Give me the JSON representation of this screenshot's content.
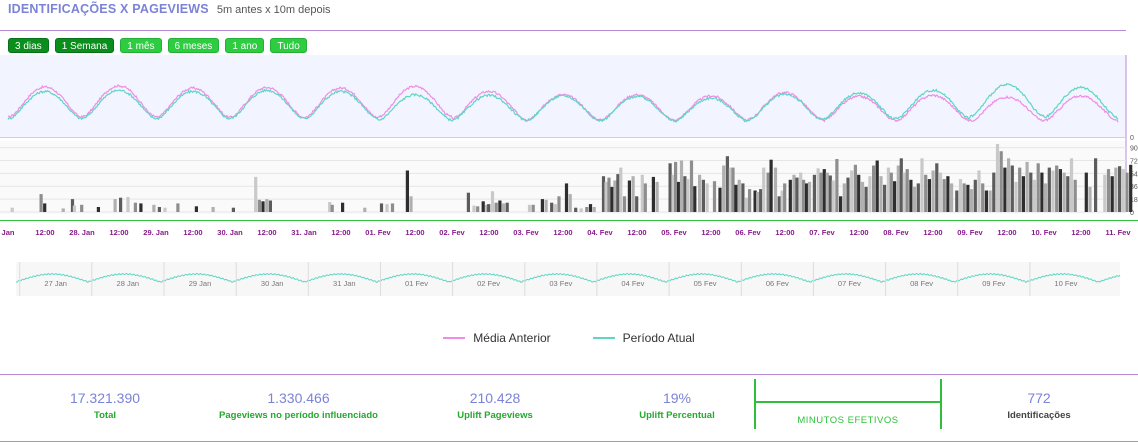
{
  "header": {
    "title": "IDENTIFICAÇÕES X PAGEVIEWS",
    "subtitle": "5m antes x 10m depois"
  },
  "range_buttons": [
    {
      "label": "3 dias",
      "active": true
    },
    {
      "label": "1 Semana",
      "active": true
    },
    {
      "label": "1 mês",
      "active": false
    },
    {
      "label": "6 meses",
      "active": false
    },
    {
      "label": "1 ano",
      "active": false
    },
    {
      "label": "Tudo",
      "active": false
    }
  ],
  "colors": {
    "previous": "#f08ce8",
    "current": "#5fd6c4",
    "accent": "#7b83d6",
    "green": "#24a82e"
  },
  "chart_data": {
    "type": "line",
    "series": [
      {
        "name": "Média Anterior",
        "color": "#f08ce8",
        "day_peaks": [
          0.86,
          0.88,
          0.84,
          0.85,
          0.84,
          0.87,
          0.78,
          0.72,
          0.72,
          0.7,
          0.76,
          0.69,
          0.71,
          0.68,
          0.7,
          0.66
        ]
      },
      {
        "name": "Período Atual",
        "color": "#5fd6c4",
        "day_peaks": [
          0.78,
          0.8,
          0.78,
          0.8,
          0.78,
          0.72,
          0.71,
          0.7,
          0.69,
          0.66,
          0.73,
          0.75,
          0.8,
          0.9,
          0.85,
          0.8
        ]
      }
    ],
    "bar_axis": {
      "ticks": [
        0,
        18,
        36,
        54,
        72,
        90
      ],
      "ylim": [
        0,
        95
      ]
    },
    "line_axis": {
      "ticks": [
        0
      ]
    },
    "x_tick_labels": [
      "Jan",
      "12:00",
      "28. Jan",
      "12:00",
      "29. Jan",
      "12:00",
      "30. Jan",
      "12:00",
      "31. Jan",
      "12:00",
      "01. Fev",
      "12:00",
      "02. Fev",
      "12:00",
      "03. Fev",
      "12:00",
      "04. Fev",
      "12:00",
      "05. Fev",
      "12:00",
      "06. Fev",
      "12:00",
      "07. Fev",
      "12:00",
      "08. Fev",
      "12:00",
      "09. Fev",
      "12:00",
      "10. Fev",
      "12:00",
      "11. Fev"
    ],
    "navigator_labels": [
      "27 Jan",
      "28 Jan",
      "29 Jan",
      "30 Jan",
      "31 Jan",
      "01 Fev",
      "02 Fev",
      "03 Fev",
      "04 Fev",
      "05 Fev",
      "06 Fev",
      "07 Fev",
      "08 Fev",
      "09 Fev",
      "10 Fev"
    ],
    "bars": [
      {
        "x": 0.07,
        "v": 6
      },
      {
        "x": 0.85,
        "v": 25
      },
      {
        "x": 0.95,
        "v": 12
      },
      {
        "x": 1.45,
        "v": 5
      },
      {
        "x": 1.7,
        "v": 18
      },
      {
        "x": 1.75,
        "v": 9
      },
      {
        "x": 1.95,
        "v": 10
      },
      {
        "x": 2.4,
        "v": 7
      },
      {
        "x": 2.85,
        "v": 18
      },
      {
        "x": 3.0,
        "v": 20
      },
      {
        "x": 3.2,
        "v": 21
      },
      {
        "x": 3.4,
        "v": 13
      },
      {
        "x": 3.55,
        "v": 12
      },
      {
        "x": 3.9,
        "v": 10
      },
      {
        "x": 4.05,
        "v": 7
      },
      {
        "x": 4.2,
        "v": 6
      },
      {
        "x": 4.55,
        "v": 12
      },
      {
        "x": 5.05,
        "v": 8
      },
      {
        "x": 5.5,
        "v": 7
      },
      {
        "x": 6.05,
        "v": 6
      },
      {
        "x": 6.65,
        "v": 49
      },
      {
        "x": 6.75,
        "v": 17
      },
      {
        "x": 6.85,
        "v": 15
      },
      {
        "x": 6.95,
        "v": 18
      },
      {
        "x": 7.05,
        "v": 16
      },
      {
        "x": 8.65,
        "v": 14
      },
      {
        "x": 8.72,
        "v": 10
      },
      {
        "x": 9.0,
        "v": 13
      },
      {
        "x": 9.6,
        "v": 6
      },
      {
        "x": 10.05,
        "v": 12
      },
      {
        "x": 10.2,
        "v": 11
      },
      {
        "x": 10.35,
        "v": 12
      },
      {
        "x": 10.75,
        "v": 58
      },
      {
        "x": 10.85,
        "v": 22
      },
      {
        "x": 12.4,
        "v": 27
      },
      {
        "x": 12.55,
        "v": 9
      },
      {
        "x": 12.65,
        "v": 8
      },
      {
        "x": 12.8,
        "v": 15
      },
      {
        "x": 12.9,
        "v": 10
      },
      {
        "x": 12.95,
        "v": 11
      },
      {
        "x": 13.05,
        "v": 29
      },
      {
        "x": 13.15,
        "v": 13
      },
      {
        "x": 13.25,
        "v": 16
      },
      {
        "x": 13.35,
        "v": 12
      },
      {
        "x": 13.45,
        "v": 13
      },
      {
        "x": 14.05,
        "v": 10
      },
      {
        "x": 14.15,
        "v": 10
      },
      {
        "x": 14.4,
        "v": 18
      },
      {
        "x": 14.5,
        "v": 17
      },
      {
        "x": 14.65,
        "v": 13
      },
      {
        "x": 14.75,
        "v": 11
      },
      {
        "x": 14.85,
        "v": 22
      },
      {
        "x": 15.05,
        "v": 40
      },
      {
        "x": 15.15,
        "v": 25
      },
      {
        "x": 15.3,
        "v": 6
      },
      {
        "x": 15.45,
        "v": 5
      },
      {
        "x": 15.6,
        "v": 7
      },
      {
        "x": 15.7,
        "v": 11
      },
      {
        "x": 15.8,
        "v": 7
      },
      {
        "x": 16.05,
        "v": 50
      },
      {
        "x": 16.12,
        "v": 42
      },
      {
        "x": 16.2,
        "v": 48
      },
      {
        "x": 16.28,
        "v": 35
      },
      {
        "x": 16.36,
        "v": 44
      },
      {
        "x": 16.44,
        "v": 53
      },
      {
        "x": 16.52,
        "v": 62
      },
      {
        "x": 16.62,
        "v": 22
      },
      {
        "x": 16.75,
        "v": 44
      },
      {
        "x": 16.85,
        "v": 50
      },
      {
        "x": 16.95,
        "v": 22
      },
      {
        "x": 17.1,
        "v": 52
      },
      {
        "x": 17.18,
        "v": 40
      },
      {
        "x": 17.4,
        "v": 49
      },
      {
        "x": 17.5,
        "v": 42
      },
      {
        "x": 17.85,
        "v": 68
      },
      {
        "x": 17.93,
        "v": 52
      },
      {
        "x": 18.0,
        "v": 70
      },
      {
        "x": 18.08,
        "v": 42
      },
      {
        "x": 18.16,
        "v": 72
      },
      {
        "x": 18.25,
        "v": 50
      },
      {
        "x": 18.33,
        "v": 46
      },
      {
        "x": 18.43,
        "v": 72
      },
      {
        "x": 18.52,
        "v": 36
      },
      {
        "x": 18.65,
        "v": 52
      },
      {
        "x": 18.75,
        "v": 45
      },
      {
        "x": 18.85,
        "v": 40
      },
      {
        "x": 19.05,
        "v": 43
      },
      {
        "x": 19.2,
        "v": 34
      },
      {
        "x": 19.3,
        "v": 65
      },
      {
        "x": 19.4,
        "v": 78
      },
      {
        "x": 19.48,
        "v": 62
      },
      {
        "x": 19.55,
        "v": 62
      },
      {
        "x": 19.63,
        "v": 38
      },
      {
        "x": 19.72,
        "v": 45
      },
      {
        "x": 19.82,
        "v": 40
      },
      {
        "x": 19.92,
        "v": 20
      },
      {
        "x": 20.0,
        "v": 32
      },
      {
        "x": 20.15,
        "v": 30
      },
      {
        "x": 20.22,
        "v": 28
      },
      {
        "x": 20.3,
        "v": 32
      },
      {
        "x": 20.38,
        "v": 62
      },
      {
        "x": 20.5,
        "v": 55
      },
      {
        "x": 20.58,
        "v": 73
      },
      {
        "x": 20.7,
        "v": 62
      },
      {
        "x": 20.8,
        "v": 22
      },
      {
        "x": 20.88,
        "v": 30
      },
      {
        "x": 20.95,
        "v": 40
      },
      {
        "x": 21.1,
        "v": 45
      },
      {
        "x": 21.2,
        "v": 52
      },
      {
        "x": 21.28,
        "v": 48
      },
      {
        "x": 21.38,
        "v": 55
      },
      {
        "x": 21.46,
        "v": 45
      },
      {
        "x": 21.54,
        "v": 40
      },
      {
        "x": 21.62,
        "v": 42
      },
      {
        "x": 21.75,
        "v": 52
      },
      {
        "x": 21.85,
        "v": 61
      },
      {
        "x": 21.93,
        "v": 55
      },
      {
        "x": 22.02,
        "v": 60
      },
      {
        "x": 22.1,
        "v": 55
      },
      {
        "x": 22.18,
        "v": 51
      },
      {
        "x": 22.26,
        "v": 44
      },
      {
        "x": 22.36,
        "v": 74
      },
      {
        "x": 22.46,
        "v": 22
      },
      {
        "x": 22.56,
        "v": 40
      },
      {
        "x": 22.66,
        "v": 48
      },
      {
        "x": 22.76,
        "v": 58
      },
      {
        "x": 22.86,
        "v": 66
      },
      {
        "x": 22.95,
        "v": 52
      },
      {
        "x": 23.05,
        "v": 42
      },
      {
        "x": 23.15,
        "v": 35
      },
      {
        "x": 23.25,
        "v": 50
      },
      {
        "x": 23.35,
        "v": 65
      },
      {
        "x": 23.45,
        "v": 72
      },
      {
        "x": 23.55,
        "v": 50
      },
      {
        "x": 23.65,
        "v": 38
      },
      {
        "x": 23.75,
        "v": 62
      },
      {
        "x": 23.83,
        "v": 55
      },
      {
        "x": 23.92,
        "v": 43
      },
      {
        "x": 24.02,
        "v": 65
      },
      {
        "x": 24.1,
        "v": 75
      },
      {
        "x": 24.18,
        "v": 55
      },
      {
        "x": 24.26,
        "v": 60
      },
      {
        "x": 24.36,
        "v": 45
      },
      {
        "x": 24.46,
        "v": 35
      },
      {
        "x": 24.56,
        "v": 40
      },
      {
        "x": 24.66,
        "v": 75
      },
      {
        "x": 24.76,
        "v": 52
      },
      {
        "x": 24.86,
        "v": 46
      },
      {
        "x": 24.96,
        "v": 58
      },
      {
        "x": 25.06,
        "v": 68
      },
      {
        "x": 25.16,
        "v": 55
      },
      {
        "x": 25.26,
        "v": 46
      },
      {
        "x": 25.36,
        "v": 50
      },
      {
        "x": 25.46,
        "v": 40
      },
      {
        "x": 25.6,
        "v": 30
      },
      {
        "x": 25.7,
        "v": 46
      },
      {
        "x": 25.8,
        "v": 40
      },
      {
        "x": 25.9,
        "v": 38
      },
      {
        "x": 26.0,
        "v": 32
      },
      {
        "x": 26.1,
        "v": 45
      },
      {
        "x": 26.2,
        "v": 58
      },
      {
        "x": 26.3,
        "v": 40
      },
      {
        "x": 26.4,
        "v": 30
      },
      {
        "x": 26.5,
        "v": 30
      },
      {
        "x": 26.6,
        "v": 55
      },
      {
        "x": 26.7,
        "v": 95
      },
      {
        "x": 26.8,
        "v": 85
      },
      {
        "x": 26.9,
        "v": 62
      },
      {
        "x": 27.0,
        "v": 75
      },
      {
        "x": 27.1,
        "v": 65
      },
      {
        "x": 27.2,
        "v": 42
      },
      {
        "x": 27.3,
        "v": 62
      },
      {
        "x": 27.4,
        "v": 50
      },
      {
        "x": 27.5,
        "v": 70
      },
      {
        "x": 27.6,
        "v": 55
      },
      {
        "x": 27.7,
        "v": 45
      },
      {
        "x": 27.8,
        "v": 68
      },
      {
        "x": 27.9,
        "v": 55
      },
      {
        "x": 28.0,
        "v": 40
      },
      {
        "x": 28.1,
        "v": 62
      },
      {
        "x": 28.2,
        "v": 58
      },
      {
        "x": 28.3,
        "v": 65
      },
      {
        "x": 28.4,
        "v": 60
      },
      {
        "x": 28.5,
        "v": 55
      },
      {
        "x": 28.6,
        "v": 50
      },
      {
        "x": 28.7,
        "v": 75
      },
      {
        "x": 28.8,
        "v": 45
      },
      {
        "x": 29.1,
        "v": 55
      },
      {
        "x": 29.2,
        "v": 35
      },
      {
        "x": 29.35,
        "v": 75
      },
      {
        "x": 29.6,
        "v": 52
      },
      {
        "x": 29.7,
        "v": 60
      },
      {
        "x": 29.8,
        "v": 50
      },
      {
        "x": 29.9,
        "v": 62
      },
      {
        "x": 30.0,
        "v": 64
      },
      {
        "x": 30.1,
        "v": 60
      },
      {
        "x": 30.2,
        "v": 55
      },
      {
        "x": 30.3,
        "v": 66
      }
    ]
  },
  "legend": [
    {
      "label": "Média Anterior"
    },
    {
      "label": "Período Atual"
    }
  ],
  "stats": [
    {
      "value": "17.321.390",
      "label": "Total"
    },
    {
      "value": "1.330.466",
      "label": "Pageviews no período influenciado"
    },
    {
      "value": "210.428",
      "label": "Uplift Pageviews"
    },
    {
      "value": "19%",
      "label": "Uplift Percentual"
    },
    {
      "label": "MINUTOS EFETIVOS"
    },
    {
      "value": "772",
      "label": "Identificações"
    }
  ]
}
